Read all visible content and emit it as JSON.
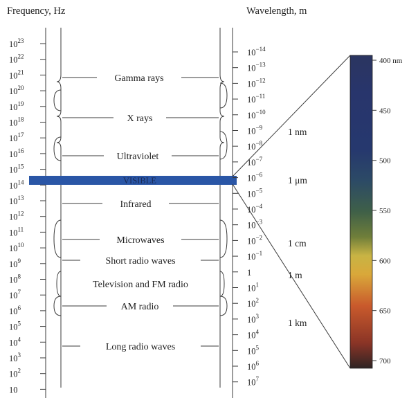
{
  "headers": {
    "frequency": "Frequency, Hz",
    "wavelength": "Wavelength, m"
  },
  "frequency_ticks": [
    {
      "base": "10",
      "exp": "23"
    },
    {
      "base": "10",
      "exp": "22"
    },
    {
      "base": "10",
      "exp": "21"
    },
    {
      "base": "10",
      "exp": "20"
    },
    {
      "base": "10",
      "exp": "19"
    },
    {
      "base": "10",
      "exp": "18"
    },
    {
      "base": "10",
      "exp": "17"
    },
    {
      "base": "10",
      "exp": "16"
    },
    {
      "base": "10",
      "exp": "15"
    },
    {
      "base": "10",
      "exp": "14"
    },
    {
      "base": "10",
      "exp": "13"
    },
    {
      "base": "10",
      "exp": "12"
    },
    {
      "base": "10",
      "exp": "11"
    },
    {
      "base": "10",
      "exp": "10"
    },
    {
      "base": "10",
      "exp": "9"
    },
    {
      "base": "10",
      "exp": "8"
    },
    {
      "base": "10",
      "exp": "7"
    },
    {
      "base": "10",
      "exp": "6"
    },
    {
      "base": "10",
      "exp": "5"
    },
    {
      "base": "10",
      "exp": "4"
    },
    {
      "base": "10",
      "exp": "3"
    },
    {
      "base": "10",
      "exp": "2"
    },
    {
      "base": "10",
      "exp": ""
    }
  ],
  "wavelength_ticks": [
    {
      "base": "10",
      "exp": "−14"
    },
    {
      "base": "10",
      "exp": "−13"
    },
    {
      "base": "10",
      "exp": "−12"
    },
    {
      "base": "10",
      "exp": "−11"
    },
    {
      "base": "10",
      "exp": "−10"
    },
    {
      "base": "10",
      "exp": "−9"
    },
    {
      "base": "10",
      "exp": "−8"
    },
    {
      "base": "10",
      "exp": "−7"
    },
    {
      "base": "10",
      "exp": "−6"
    },
    {
      "base": "10",
      "exp": "−5"
    },
    {
      "base": "10",
      "exp": "−4"
    },
    {
      "base": "10",
      "exp": "−3"
    },
    {
      "base": "10",
      "exp": "−2"
    },
    {
      "base": "10",
      "exp": "−1"
    },
    {
      "base": "1",
      "exp": ""
    },
    {
      "base": "10",
      "exp": "1"
    },
    {
      "base": "10",
      "exp": "2"
    },
    {
      "base": "10",
      "exp": "3"
    },
    {
      "base": "10",
      "exp": "4"
    },
    {
      "base": "10",
      "exp": "5"
    },
    {
      "base": "10",
      "exp": "6"
    },
    {
      "base": "10",
      "exp": "7"
    }
  ],
  "bands": [
    "Gamma rays",
    "X rays",
    "Ultraviolet",
    "VISIBLE",
    "Infrared",
    "Microwaves",
    "Short radio waves",
    "Television and FM radio",
    "AM radio",
    "Long radio waves"
  ],
  "unit_markers": [
    "1 nm",
    "1 μm",
    "1 cm",
    "1 m",
    "1 km"
  ],
  "visible_spectrum": {
    "labels": [
      "400 nm",
      "450",
      "500",
      "550",
      "600",
      "650",
      "700"
    ],
    "colors": [
      "#2a3a6a",
      "#26346e",
      "#2e4670",
      "#556b3c",
      "#d4b23e",
      "#c4542e",
      "#3a2a2a"
    ]
  },
  "colors": {
    "visible_bar": "#2a56a6",
    "lines": "#3a3a3a"
  }
}
